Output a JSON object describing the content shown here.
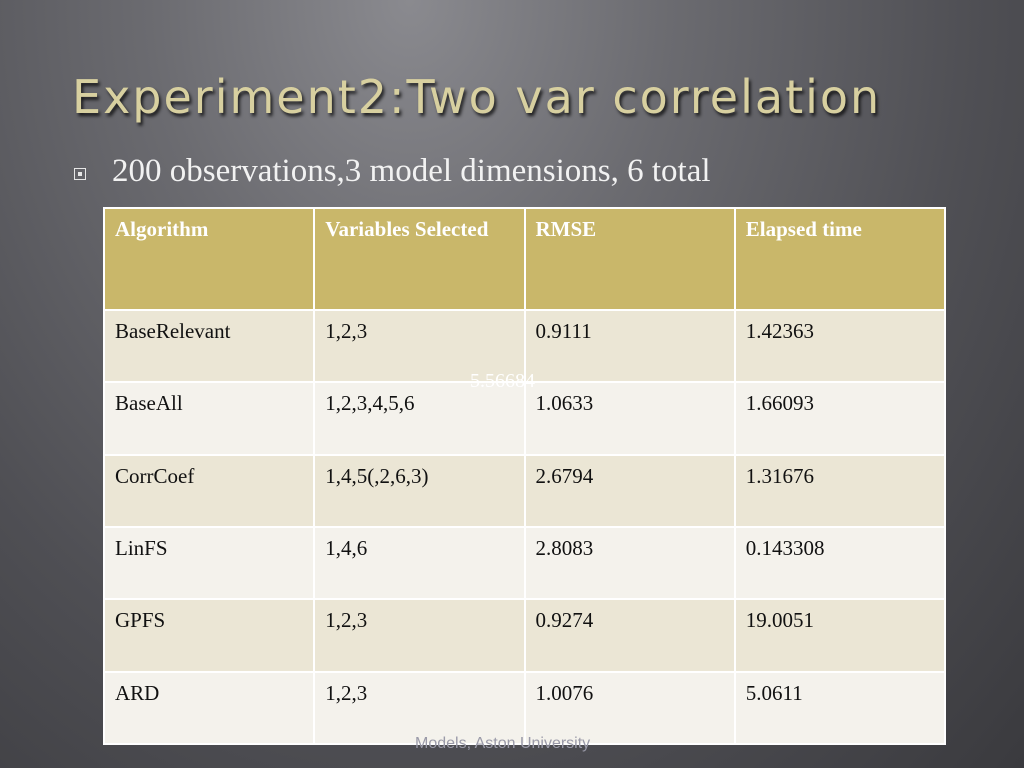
{
  "slide": {
    "title": "Experiment2:Two var correlation",
    "bullet": "200 observations,3 model dimensions, 6 total",
    "overlay_value": "5.56684",
    "footer": "Models, Aston University"
  },
  "table": {
    "headers": [
      "Algorithm",
      "Variables Selected",
      "RMSE",
      "Elapsed time"
    ],
    "rows": [
      [
        "BaseRelevant",
        "1,2,3",
        "0.9111",
        "1.42363"
      ],
      [
        "BaseAll",
        "1,2,3,4,5,6",
        "1.0633",
        "1.66093"
      ],
      [
        "CorrCoef",
        "1,4,5(,2,6,3)",
        "2.6794",
        "1.31676"
      ],
      [
        "LinFS",
        "1,4,6",
        "2.8083",
        "0.143308"
      ],
      [
        "GPFS",
        "1,2,3",
        "0.9274",
        "19.0051"
      ],
      [
        "ARD",
        "1,2,3",
        "1.0076",
        "5.0611"
      ]
    ]
  },
  "colors": {
    "header_bg": "#c9b76a",
    "row_odd": "#ebe6d5",
    "row_even": "#f4f2ec",
    "title": "#d8d0a0"
  }
}
